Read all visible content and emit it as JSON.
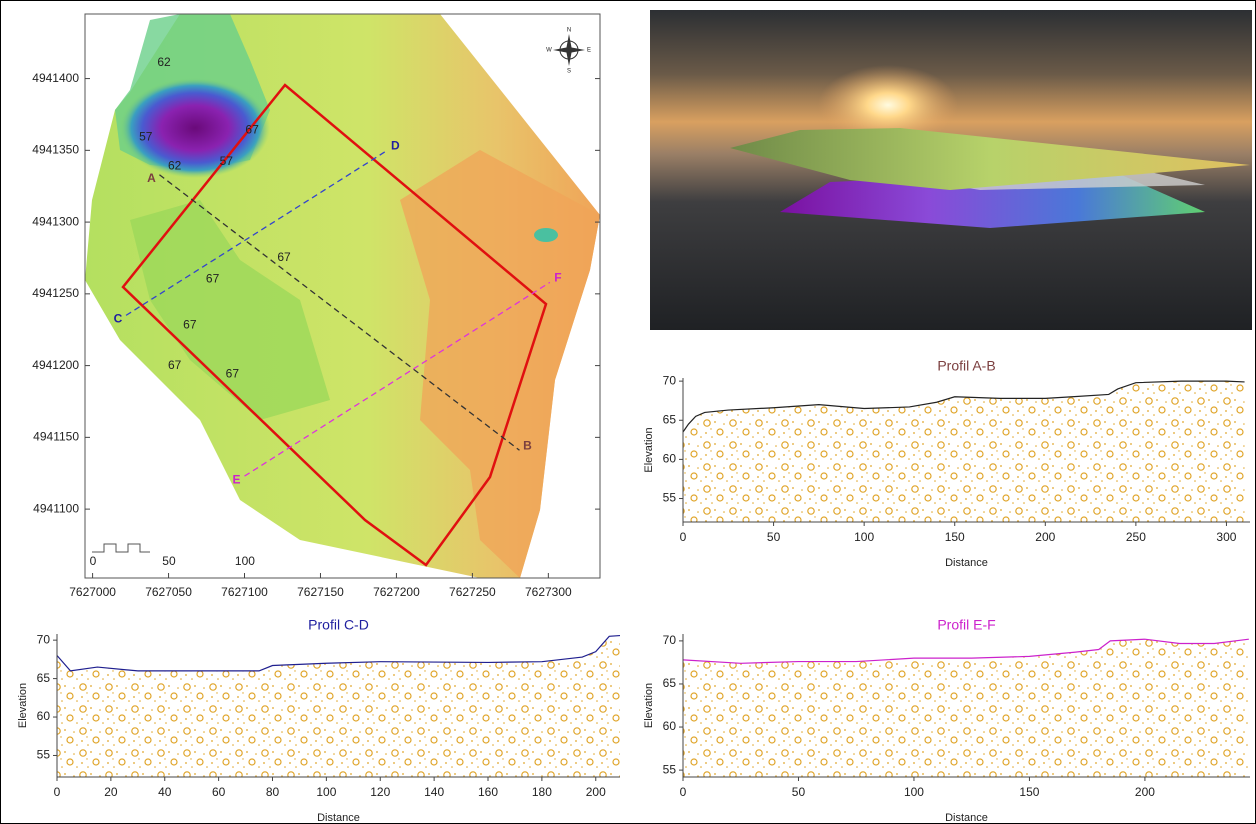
{
  "chart_data": [
    {
      "type": "map",
      "xlim": [
        7626995,
        7627334
      ],
      "ylim": [
        4941052,
        4941445
      ],
      "xticks": [
        7627000,
        7627050,
        7627100,
        7627150,
        7627200,
        7627250,
        7627300
      ],
      "yticks": [
        4941100,
        4941150,
        4941200,
        4941250,
        4941300,
        4941350,
        4941400
      ],
      "compass": [
        "N",
        "E",
        "S",
        "W"
      ],
      "scale_bar": [
        0,
        50,
        100
      ],
      "profile_lines": [
        {
          "labels": [
            "A",
            "B"
          ],
          "color": "#333333",
          "label_color": "#7b3f3f",
          "x": [
            7627044,
            7627281
          ],
          "y": [
            4941333,
            4941141
          ]
        },
        {
          "labels": [
            "C",
            "D"
          ],
          "color": "#3344cc",
          "label_color": "#1f1f9f",
          "x": [
            7627022,
            7627194
          ],
          "y": [
            4941235,
            4941350
          ]
        },
        {
          "labels": [
            "E",
            "F"
          ],
          "color": "#dd33dd",
          "label_color": "#cc22cc",
          "x": [
            7627100,
            7627301
          ],
          "y": [
            4941123,
            4941258
          ]
        }
      ],
      "contour_labels": [
        {
          "value": 62,
          "x": 7627047,
          "y": 4941411
        },
        {
          "value": 57,
          "x": 7627035,
          "y": 4941359
        },
        {
          "value": 67,
          "x": 7627105,
          "y": 4941364
        },
        {
          "value": 57,
          "x": 7627088,
          "y": 4941342
        },
        {
          "value": 62,
          "x": 7627054,
          "y": 4941339
        },
        {
          "value": 67,
          "x": 7627126,
          "y": 4941275
        },
        {
          "value": 67,
          "x": 7627079,
          "y": 4941260
        },
        {
          "value": 67,
          "x": 7627064,
          "y": 4941228
        },
        {
          "value": 67,
          "x": 7627054,
          "y": 4941200
        },
        {
          "value": 67,
          "x": 7627092,
          "y": 4941194
        }
      ]
    },
    {
      "type": "profile",
      "title": "Profil A-B",
      "title_color": "#7b3f3f",
      "color": "#222222",
      "xlabel": "Distance",
      "ylabel": "Elevation",
      "x": [
        0,
        3,
        7,
        12,
        25,
        50,
        75,
        100,
        125,
        140,
        150,
        175,
        200,
        215,
        235,
        240,
        250,
        275,
        300,
        310
      ],
      "values": [
        63.5,
        64.5,
        65.5,
        66,
        66.3,
        66.6,
        67,
        66.5,
        66.7,
        67.3,
        68,
        67.8,
        67.8,
        68,
        68.3,
        69,
        69.8,
        70,
        70,
        69.9
      ],
      "xlim": [
        0,
        313
      ],
      "ylim": [
        52,
        70.4
      ],
      "xticks": [
        0,
        50,
        100,
        150,
        200,
        250,
        300
      ],
      "yticks": [
        55,
        60,
        65,
        70
      ]
    },
    {
      "type": "profile",
      "title": "Profil C-D",
      "title_color": "#1f1f9f",
      "color": "#1f1f8f",
      "xlabel": "Distance",
      "ylabel": "Elevation",
      "x": [
        0,
        5,
        15,
        30,
        60,
        75,
        80,
        100,
        120,
        160,
        180,
        195,
        200,
        205,
        209
      ],
      "values": [
        68,
        66,
        66.5,
        66,
        66,
        66,
        66.7,
        67,
        67.2,
        67.1,
        67.2,
        67.8,
        68.5,
        70.5,
        70.6
      ],
      "xlim": [
        0,
        209
      ],
      "ylim": [
        52.2,
        70.8
      ],
      "xticks": [
        0,
        20,
        40,
        60,
        80,
        100,
        120,
        140,
        160,
        180,
        200
      ],
      "yticks": [
        55,
        60,
        65,
        70
      ]
    },
    {
      "type": "profile",
      "title": "Profil E-F",
      "title_color": "#cc22cc",
      "color": "#cc22cc",
      "xlabel": "Distance",
      "ylabel": "Elevation",
      "x": [
        0,
        25,
        50,
        75,
        100,
        125,
        150,
        170,
        180,
        185,
        200,
        215,
        230,
        245
      ],
      "values": [
        67.8,
        67.4,
        67.6,
        67.6,
        68,
        68,
        68.2,
        68.7,
        69,
        70,
        70.2,
        69.7,
        69.7,
        70.2
      ],
      "xlim": [
        0,
        245.5
      ],
      "ylim": [
        54.2,
        70.8
      ],
      "xticks": [
        0,
        50,
        100,
        150,
        200
      ],
      "yticks": [
        55,
        60,
        65,
        70
      ]
    }
  ]
}
